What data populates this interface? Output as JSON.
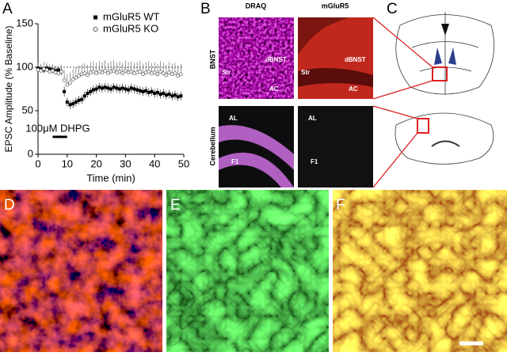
{
  "chart_data": {
    "type": "scatter",
    "x_label": "Time (min)",
    "y_label": "EPSC Amplitude (% Baseline)",
    "x": [
      0,
      1,
      2,
      3,
      4,
      5,
      6,
      7,
      8,
      9,
      10,
      11,
      12,
      13,
      14,
      15,
      16,
      17,
      18,
      19,
      20,
      21,
      22,
      23,
      24,
      25,
      26,
      27,
      28,
      29,
      30,
      31,
      32,
      33,
      34,
      35,
      36,
      37,
      38,
      39,
      40,
      41,
      42,
      43,
      44,
      45,
      46,
      47,
      48,
      49
    ],
    "series": [
      {
        "name": "mGluR5 WT",
        "color": "#000000",
        "marker": "filled-square",
        "values": [
          99,
          98,
          97,
          99,
          98,
          97,
          96,
          97,
          95,
          72,
          60,
          57,
          58,
          60,
          62,
          63,
          67,
          70,
          72,
          74,
          75,
          77,
          76,
          77,
          76,
          75,
          77,
          76,
          75,
          76,
          75,
          74,
          76,
          75,
          74,
          73,
          72,
          73,
          71,
          72,
          70,
          71,
          69,
          70,
          68,
          69,
          67,
          68,
          66,
          67
        ],
        "errors": [
          4,
          4,
          4,
          4,
          4,
          4,
          4,
          4,
          4,
          6,
          5,
          5,
          5,
          5,
          5,
          5,
          5,
          5,
          5,
          5,
          5,
          5,
          5,
          5,
          5,
          5,
          5,
          5,
          5,
          5,
          5,
          5,
          5,
          5,
          5,
          5,
          5,
          5,
          5,
          5,
          5,
          5,
          5,
          5,
          5,
          5,
          5,
          5,
          5,
          5
        ]
      },
      {
        "name": "mGluR5 KO",
        "color": "#555555",
        "marker": "open-circle",
        "values": [
          97,
          96,
          98,
          97,
          95,
          96,
          94,
          93,
          95,
          85,
          80,
          82,
          86,
          88,
          90,
          92,
          93,
          91,
          94,
          95,
          93,
          95,
          94,
          96,
          93,
          95,
          96,
          94,
          95,
          93,
          96,
          94,
          95,
          93,
          94,
          95,
          92,
          94,
          95,
          93,
          94,
          92,
          95,
          93,
          91,
          94,
          92,
          93,
          90,
          92
        ],
        "errors": [
          8,
          8,
          8,
          8,
          8,
          8,
          8,
          8,
          8,
          12,
          12,
          12,
          12,
          12,
          12,
          12,
          12,
          12,
          12,
          12,
          12,
          12,
          12,
          12,
          12,
          12,
          12,
          12,
          12,
          12,
          12,
          12,
          12,
          12,
          12,
          12,
          12,
          12,
          12,
          12,
          12,
          12,
          12,
          12,
          12,
          12,
          12,
          12,
          12,
          12
        ]
      }
    ],
    "xlim": [
      0,
      50
    ],
    "ylim": [
      0,
      150
    ],
    "xticks": [
      0,
      10,
      20,
      30,
      40,
      50
    ],
    "yticks": [
      0,
      50,
      100,
      150
    ],
    "reference_line": 100,
    "annotation": {
      "text": "100μM DHPG",
      "span": [
        5,
        10
      ]
    }
  },
  "figure": {
    "panel_labels": [
      "A",
      "B",
      "C",
      "D",
      "E",
      "F"
    ],
    "panel_b": {
      "columns": [
        "DRAQ",
        "mGluR5"
      ],
      "rows": [
        "BNST",
        "Cerebellum"
      ],
      "region_labels": [
        [
          "Str",
          "dBNST",
          "AC"
        ],
        [
          "Str",
          "dBNST",
          "AC"
        ],
        [
          "AL",
          "F1"
        ],
        [
          "AL",
          "F1"
        ]
      ]
    }
  }
}
